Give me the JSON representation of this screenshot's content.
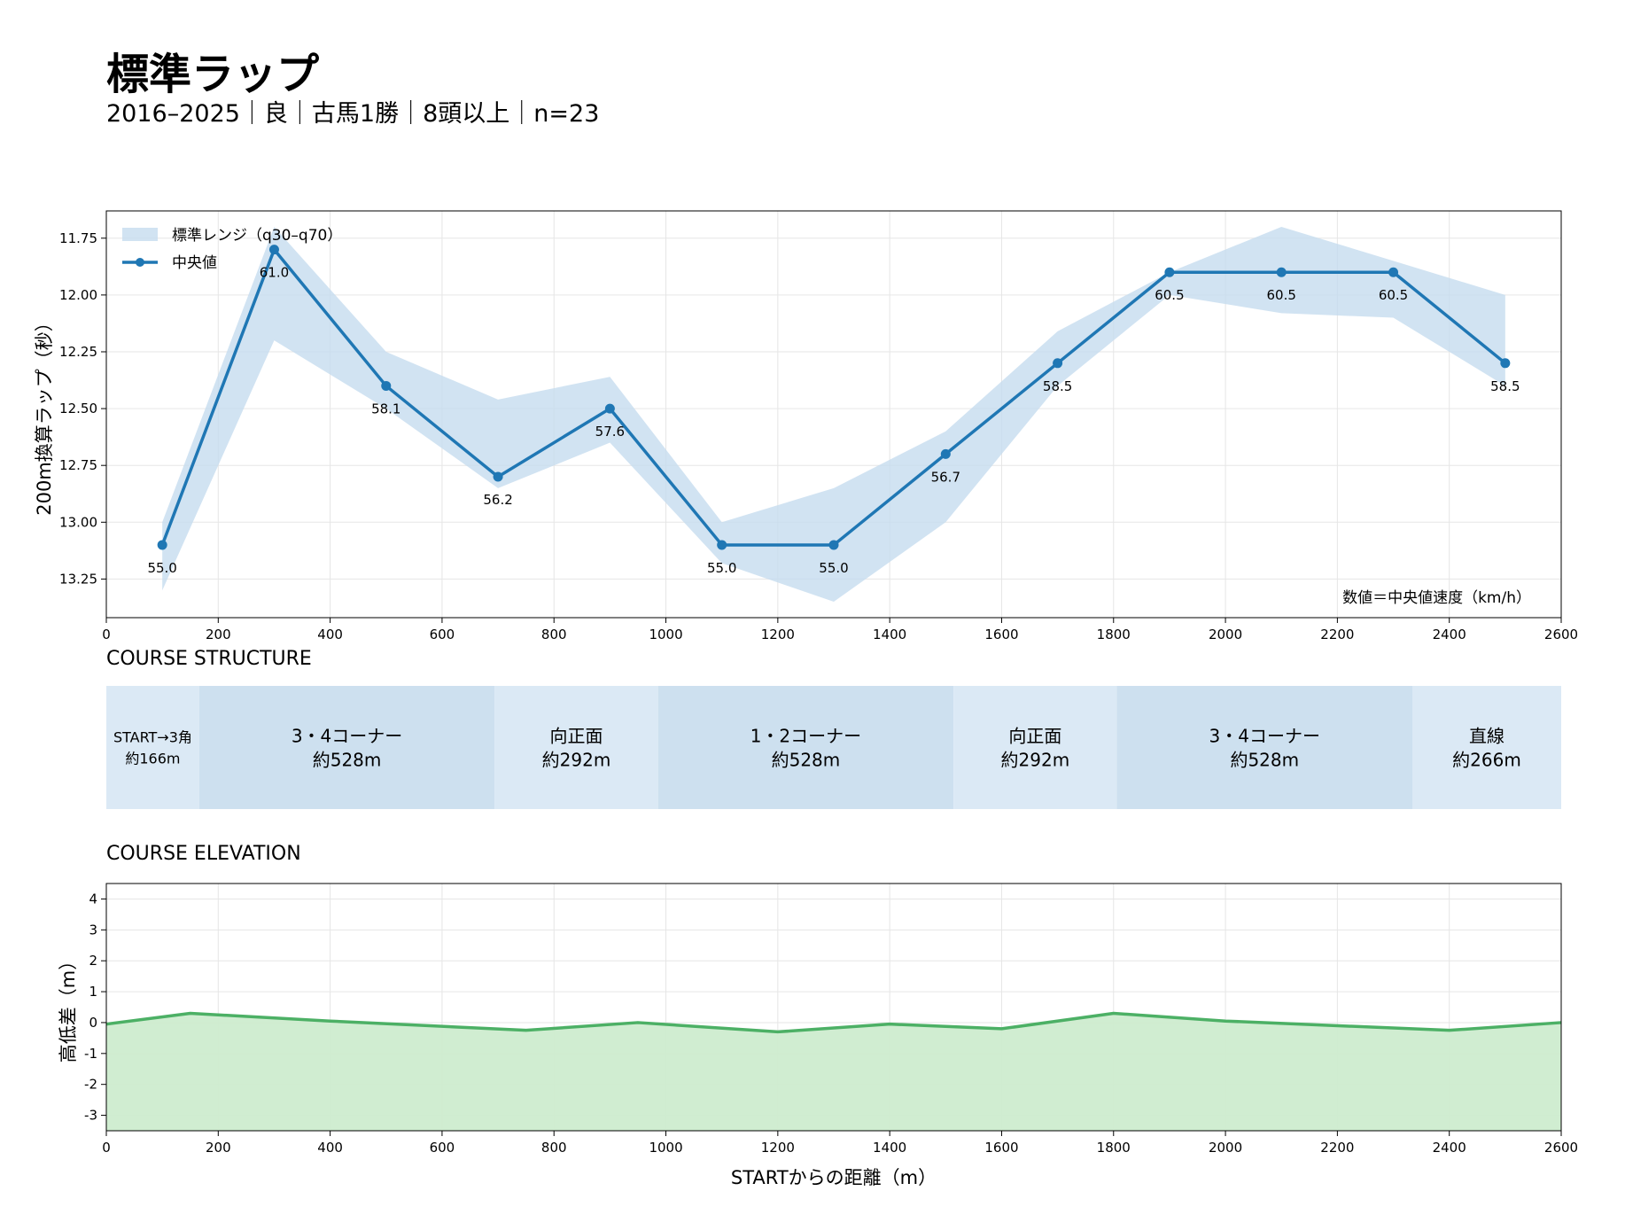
{
  "header": {
    "title": "標準ラップ",
    "subtitle": "2016–2025｜良｜古馬1勝｜8頭以上｜n=23"
  },
  "colors": {
    "median_line": "#1f77b4",
    "band_fill": "#c6dcef",
    "segment_light": "#dbe9f5",
    "segment_dark": "#cde0ef",
    "elevation_line": "#4cb065",
    "elevation_fill": "#cdeccf",
    "grid": "#e6e6e6"
  },
  "chart_data": [
    {
      "id": "lap",
      "type": "line",
      "xlim": [
        0,
        2600
      ],
      "ylim": [
        13.42,
        11.63
      ],
      "y_inverted": true,
      "x_ticks": [
        0,
        200,
        400,
        600,
        800,
        1000,
        1200,
        1400,
        1600,
        1800,
        2000,
        2200,
        2400,
        2600
      ],
      "y_ticks": [
        11.75,
        12.0,
        12.25,
        12.5,
        12.75,
        13.0,
        13.25
      ],
      "y_tick_labels": [
        "11.75",
        "12.00",
        "12.25",
        "12.50",
        "12.75",
        "13.00",
        "13.25"
      ],
      "ylabel": "200m換算ラップ（秒）",
      "annotation": "数値＝中央値速度（km/h）",
      "legend": {
        "position": "top-left",
        "band_label": "標準レンジ（q30–q70）",
        "median_label": "中央値"
      },
      "x": [
        100,
        300,
        500,
        700,
        900,
        1100,
        1300,
        1500,
        1700,
        1900,
        2100,
        2300,
        2500
      ],
      "median": [
        13.1,
        11.8,
        12.4,
        12.8,
        12.5,
        13.1,
        13.1,
        12.7,
        12.3,
        11.9,
        11.9,
        11.9,
        12.3
      ],
      "q30": [
        13.3,
        12.2,
        12.5,
        12.85,
        12.65,
        13.18,
        13.35,
        13.0,
        12.4,
        12.0,
        12.08,
        12.1,
        12.4
      ],
      "q70": [
        13.0,
        11.7,
        12.25,
        12.46,
        12.36,
        13.0,
        12.85,
        12.6,
        12.16,
        11.9,
        11.7,
        11.85,
        12.0
      ],
      "speed_labels": [
        "55.0",
        "61.0",
        "58.1",
        "56.2",
        "57.6",
        "55.0",
        "55.0",
        "56.7",
        "58.5",
        "60.5",
        "60.5",
        "60.5",
        "58.5"
      ]
    },
    {
      "id": "structure",
      "type": "table",
      "title": "COURSE STRUCTURE",
      "segments": [
        {
          "start": 0,
          "end": 166,
          "line1": "START→3角",
          "line2": "約166m",
          "shade": "light",
          "small": true
        },
        {
          "start": 166,
          "end": 694,
          "line1": "3・4コーナー",
          "line2": "約528m",
          "shade": "dark",
          "small": false
        },
        {
          "start": 694,
          "end": 986,
          "line1": "向正面",
          "line2": "約292m",
          "shade": "light",
          "small": false
        },
        {
          "start": 986,
          "end": 1514,
          "line1": "1・2コーナー",
          "line2": "約528m",
          "shade": "dark",
          "small": false
        },
        {
          "start": 1514,
          "end": 1806,
          "line1": "向正面",
          "line2": "約292m",
          "shade": "light",
          "small": false
        },
        {
          "start": 1806,
          "end": 2334,
          "line1": "3・4コーナー",
          "line2": "約528m",
          "shade": "dark",
          "small": false
        },
        {
          "start": 2334,
          "end": 2600,
          "line1": "直線",
          "line2": "約266m",
          "shade": "light",
          "small": false
        }
      ]
    },
    {
      "id": "elevation",
      "type": "area",
      "title": "COURSE ELEVATION",
      "xlim": [
        0,
        2600
      ],
      "ylim": [
        -3.5,
        4.5
      ],
      "x_ticks": [
        0,
        200,
        400,
        600,
        800,
        1000,
        1200,
        1400,
        1600,
        1800,
        2000,
        2200,
        2400,
        2600
      ],
      "y_ticks": [
        4,
        3,
        2,
        1,
        0,
        -1,
        -2,
        -3
      ],
      "xlabel": "STARTからの距離（m）",
      "ylabel": "高低差（m）",
      "x": [
        0,
        150,
        400,
        750,
        950,
        1200,
        1400,
        1600,
        1800,
        2000,
        2400,
        2600
      ],
      "y": [
        -0.05,
        0.3,
        0.05,
        -0.25,
        0.0,
        -0.3,
        -0.05,
        -0.2,
        0.3,
        0.05,
        -0.25,
        0.0
      ]
    }
  ]
}
